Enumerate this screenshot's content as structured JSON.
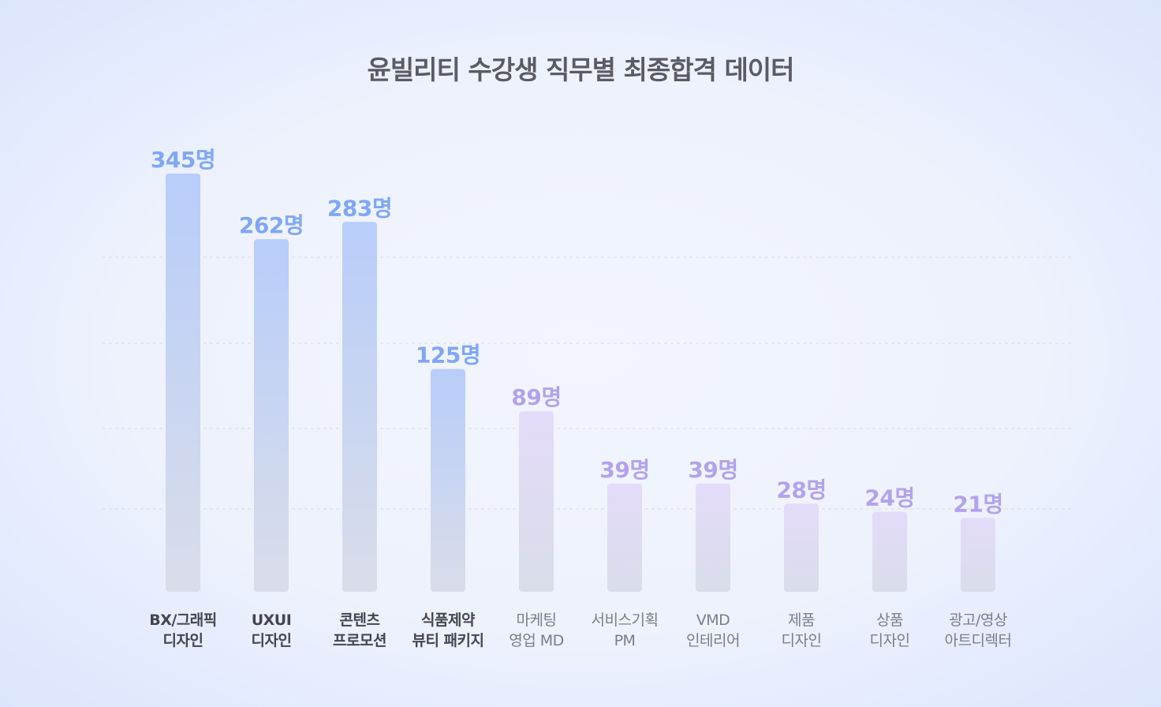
{
  "chart_data": {
    "type": "bar",
    "title": "윤빌리티 수강생 직무별 최종합격 데이터",
    "unit": "명",
    "categories": [
      [
        "BX/그래픽",
        "디자인"
      ],
      [
        "UXUI",
        "디자인"
      ],
      [
        "콘텐츠",
        "프로모션"
      ],
      [
        "식품제약",
        "뷰티 패키지"
      ],
      [
        "마케팅",
        "영업 MD"
      ],
      [
        "서비스기획",
        "PM"
      ],
      [
        "VMD",
        "인테리어"
      ],
      [
        "제품",
        "디자인"
      ],
      [
        "상품",
        "디자인"
      ],
      [
        "광고/영상",
        "아트디렉터"
      ]
    ],
    "values": [
      345,
      262,
      283,
      125,
      89,
      39,
      39,
      28,
      24,
      21
    ],
    "highlight_count": 4,
    "grid": true,
    "colors": {
      "primary_bar": "#b8cdfa",
      "primary_label": "#7fa7f6",
      "secondary_bar": "#e4dbfa",
      "secondary_label": "#b3a2ee",
      "bar_bottom": "#d9dde9",
      "category_primary": "#45454d",
      "category_secondary": "#7d7d86",
      "baseline": "#b9bcc6",
      "grid": "#d6dbe8"
    }
  }
}
